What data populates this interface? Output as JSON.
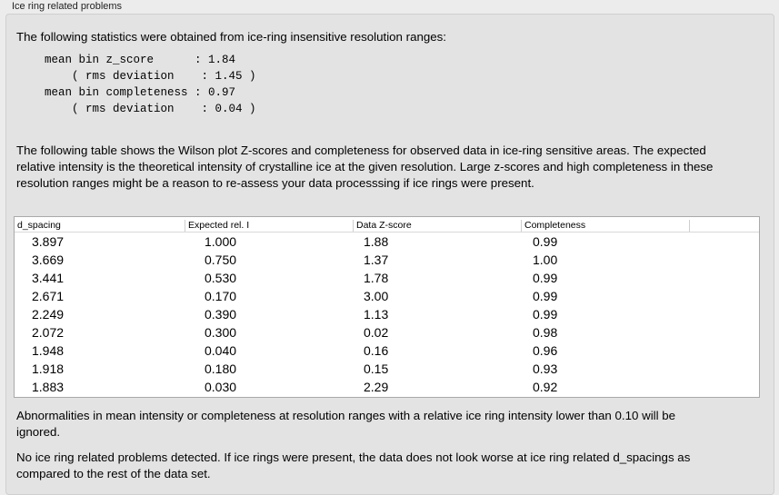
{
  "group_title": "Ice ring related problems",
  "intro": "The following statistics were obtained from ice-ring insensitive resolution ranges:",
  "stats": "mean bin z_score      : 1.84\n    ( rms deviation    : 1.45 )\nmean bin completeness : 0.97\n    ( rms deviation    : 0.04 )",
  "table_intro": "The following table shows the Wilson plot Z-scores and completeness for observed data in ice-ring sensitive areas. The expected relative intensity is the theoretical intensity of crystalline ice at the given resolution. Large z-scores and high completeness in these resolution ranges might be a reason to re-assess your data processsing if ice rings were present.",
  "table": {
    "headers": [
      "d_spacing",
      "Expected rel. I",
      "Data Z-score",
      "Completeness"
    ],
    "rows": [
      [
        "3.897",
        "1.000",
        "1.88",
        "0.99"
      ],
      [
        "3.669",
        "0.750",
        "1.37",
        "1.00"
      ],
      [
        "3.441",
        "0.530",
        "1.78",
        "0.99"
      ],
      [
        "2.671",
        "0.170",
        "3.00",
        "0.99"
      ],
      [
        "2.249",
        "0.390",
        "1.13",
        "0.99"
      ],
      [
        "2.072",
        "0.300",
        "0.02",
        "0.98"
      ],
      [
        "1.948",
        "0.040",
        "0.16",
        "0.96"
      ],
      [
        "1.918",
        "0.180",
        "0.15",
        "0.93"
      ],
      [
        "1.883",
        "0.030",
        "2.29",
        "0.92"
      ]
    ]
  },
  "note": "Abnormalities in mean intensity or completeness at resolution ranges with a relative ice ring intensity lower than 0.10 will be ignored.",
  "conclusion": "No ice ring related problems detected. If ice rings were present, the data does not look worse at ice ring related d_spacings as compared to the rest of the data set."
}
